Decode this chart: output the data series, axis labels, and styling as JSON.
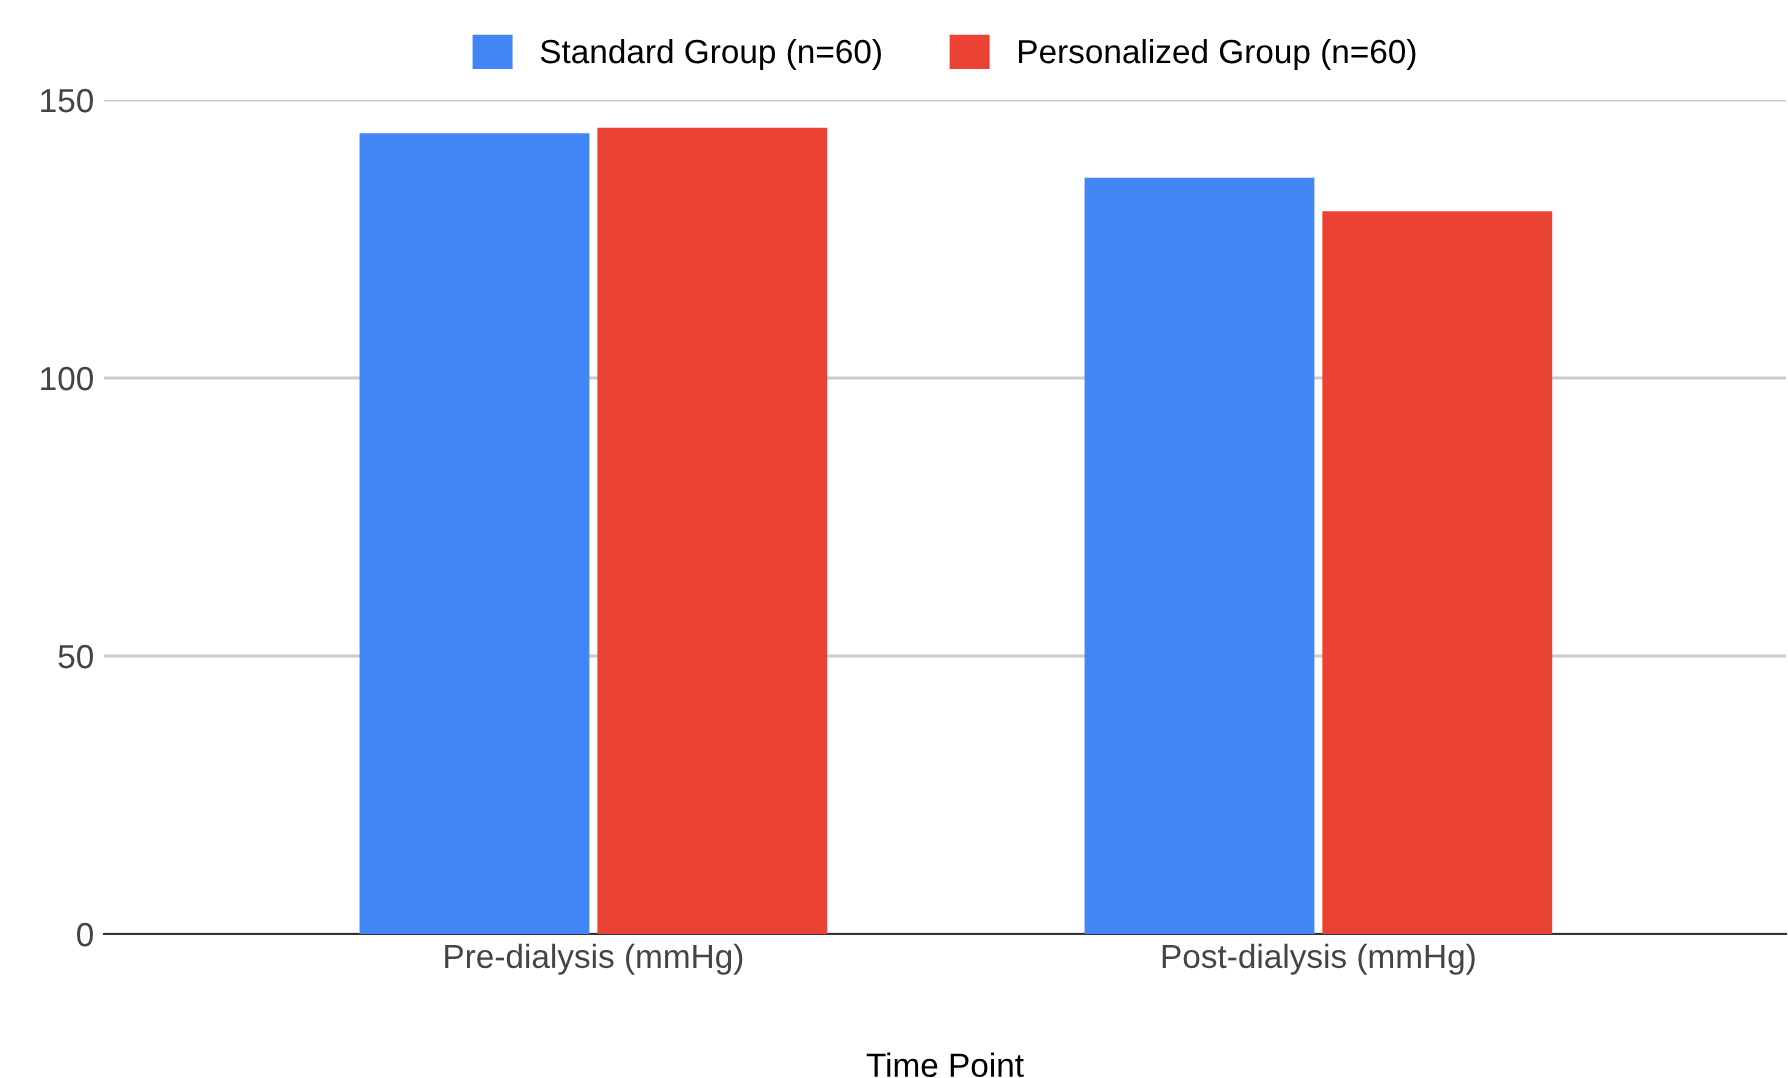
{
  "chart_data": {
    "type": "bar",
    "xlabel": "Time Point",
    "categories": [
      "Pre-dialysis (mmHg)",
      "Post-dialysis (mmHg)"
    ],
    "series": [
      {
        "name": "Standard Group (n=60)",
        "color": "#4285f4",
        "values": [
          144,
          136
        ]
      },
      {
        "name": "Personalized Group (n=60)",
        "color": "#ea4335",
        "values": [
          145,
          130
        ]
      }
    ],
    "ylim": [
      0,
      150
    ],
    "yticks": [
      0,
      50,
      100,
      150
    ],
    "grid": "y",
    "legend": "top"
  }
}
